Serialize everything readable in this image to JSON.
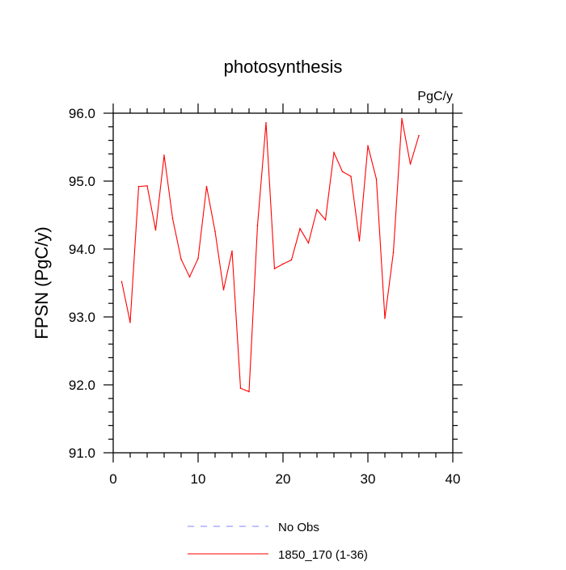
{
  "chart_data": {
    "type": "line",
    "title": "photosynthesis",
    "subtitle_right": "PgC/y",
    "ylabel": "FPSN  (PgC/y)",
    "xlabel": "",
    "xlim": [
      0,
      40
    ],
    "ylim": [
      91.0,
      96.0
    ],
    "x_ticks": [
      0,
      10,
      20,
      30,
      40
    ],
    "x_tick_labels": [
      "0",
      "10",
      "20",
      "30",
      "40"
    ],
    "y_ticks": [
      91.0,
      92.0,
      93.0,
      94.0,
      95.0,
      96.0
    ],
    "y_tick_labels": [
      "91.0",
      "92.0",
      "93.0",
      "94.0",
      "95.0",
      "96.0"
    ],
    "grid": false,
    "legend_position": "bottom",
    "series": [
      {
        "name": "No Obs",
        "color": "#8080ff",
        "dash": "dashed",
        "x": [],
        "values": []
      },
      {
        "name": "1850_170 (1-36)",
        "color": "#ff0000",
        "dash": "solid",
        "x": [
          1,
          2,
          3,
          4,
          5,
          6,
          7,
          8,
          9,
          10,
          11,
          12,
          13,
          14,
          15,
          16,
          17,
          18,
          19,
          20,
          21,
          22,
          23,
          24,
          25,
          26,
          27,
          28,
          29,
          30,
          31,
          32,
          33,
          34,
          35,
          36
        ],
        "values": [
          93.52,
          92.92,
          94.92,
          94.93,
          94.28,
          95.38,
          94.45,
          93.85,
          93.59,
          93.86,
          94.92,
          94.26,
          93.4,
          93.97,
          91.95,
          91.9,
          94.35,
          95.86,
          93.71,
          93.78,
          93.84,
          94.3,
          94.09,
          94.58,
          94.43,
          95.42,
          95.14,
          95.07,
          94.12,
          95.52,
          95.03,
          92.98,
          93.95,
          95.92,
          95.25,
          95.67
        ]
      }
    ]
  }
}
